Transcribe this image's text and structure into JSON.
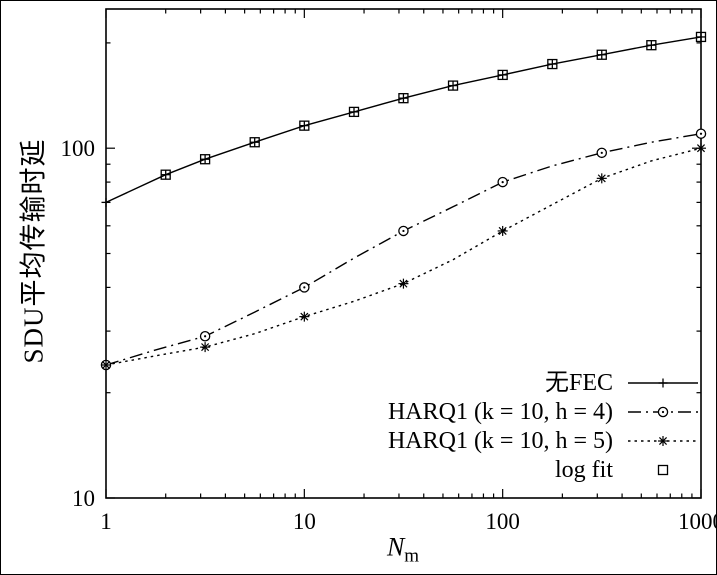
{
  "figure": {
    "background": "#ffffff",
    "ink": "#000000"
  },
  "chart_data": {
    "type": "line",
    "x_scale": "log",
    "y_scale": "log",
    "xlim": [
      1,
      1000
    ],
    "ylim": [
      10,
      250
    ],
    "xlabel": {
      "main": "N",
      "sub": "m"
    },
    "ylabel": "SDU平均传输时延",
    "x_ticks": [
      "1",
      "10",
      "100",
      "1000"
    ],
    "y_ticks": [
      "10",
      "100"
    ],
    "grid": false,
    "legend_position": "inside-bottom-right",
    "series": [
      {
        "name": "无FEC",
        "line": "solid",
        "marker": "plus",
        "x": [
          1,
          2,
          3.16,
          5.62,
          10,
          17.8,
          31.6,
          56.2,
          100,
          178,
          316,
          562,
          1000
        ],
        "y": [
          70,
          84,
          93,
          104,
          116,
          127,
          139,
          151,
          162,
          174,
          185,
          197,
          208
        ]
      },
      {
        "name": "HARQ1 (k = 10, h = 4)",
        "line": "dashdot",
        "marker": "circle",
        "x": [
          1,
          3.16,
          10,
          31.6,
          100,
          316,
          1000
        ],
        "y": [
          24,
          29,
          40,
          58,
          80,
          97,
          110
        ],
        "path_x": [
          1,
          1.78,
          3.16,
          5.62,
          10,
          17.8,
          31.6,
          56.2,
          100,
          178,
          316,
          562,
          1000
        ],
        "path_y": [
          24,
          26.5,
          29,
          34,
          40,
          48.5,
          58,
          68,
          80,
          89,
          97,
          104,
          110
        ]
      },
      {
        "name": "HARQ1 (k = 10, h = 5)",
        "line": "dotted",
        "marker": "asterisk",
        "x": [
          1,
          3.16,
          10,
          31.6,
          100,
          316,
          1000
        ],
        "y": [
          24,
          27,
          33,
          41,
          58,
          82,
          100
        ],
        "path_x": [
          1,
          1.78,
          3.16,
          5.62,
          10,
          17.8,
          31.6,
          56.2,
          100,
          178,
          316,
          562,
          1000
        ],
        "path_y": [
          24,
          25.5,
          27,
          29.5,
          33,
          36.5,
          41,
          48,
          58,
          69,
          82,
          92,
          100
        ]
      },
      {
        "name": "log fit",
        "line": "none",
        "marker": "square",
        "x": [
          2,
          3.16,
          5.62,
          10,
          17.8,
          31.6,
          56.2,
          100,
          178,
          316,
          562,
          1000
        ],
        "y": [
          84,
          93,
          104,
          116,
          127,
          139,
          151,
          162,
          174,
          185,
          197,
          208
        ]
      }
    ]
  }
}
